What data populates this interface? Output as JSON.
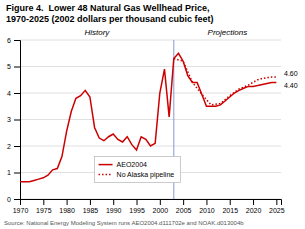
{
  "chart_data": {
    "type": "line",
    "title": "Figure 4.  Lower 48 Natural Gas Wellhead Price,",
    "subtitle": "1970-2025 (2002 dollars per thousand cubic feet)",
    "source": "Source: National Energy Modeling System runs AEO2004.d111702e and NOAK.d013004b",
    "xlim": [
      1970,
      2026
    ],
    "ylim": [
      0,
      6
    ],
    "xticks": [
      1970,
      1975,
      1980,
      1985,
      1990,
      1995,
      2000,
      2005,
      2010,
      2015,
      2020,
      2025
    ],
    "yticks": [
      0,
      1,
      2,
      3,
      4,
      5,
      6
    ],
    "grid": true,
    "divider_x": 2003,
    "annotations": [
      {
        "text": "History"
      },
      {
        "text": "Projections"
      },
      {
        "text": "4.60",
        "y": 4.6
      },
      {
        "text": "4.40",
        "y": 4.4
      }
    ],
    "series": [
      {
        "name": "AEO2004",
        "color": "#cc0000",
        "line_style": "solid",
        "x": [
          1970,
          1971,
          1972,
          1973,
          1974,
          1975,
          1976,
          1977,
          1978,
          1979,
          1980,
          1981,
          1982,
          1983,
          1984,
          1985,
          1986,
          1987,
          1988,
          1989,
          1990,
          1991,
          1992,
          1993,
          1994,
          1995,
          1996,
          1997,
          1998,
          1999,
          2000,
          2001,
          2002,
          2003,
          2004,
          2005,
          2006,
          2007,
          2008,
          2009,
          2010,
          2011,
          2012,
          2013,
          2014,
          2015,
          2016,
          2017,
          2018,
          2019,
          2020,
          2021,
          2022,
          2023,
          2024,
          2025
        ],
        "values": [
          0.65,
          0.65,
          0.65,
          0.7,
          0.75,
          0.8,
          0.9,
          1.1,
          1.15,
          1.6,
          2.55,
          3.3,
          3.8,
          3.9,
          4.1,
          3.85,
          2.7,
          2.3,
          2.2,
          2.35,
          2.45,
          2.25,
          2.15,
          2.35,
          2.05,
          1.85,
          2.35,
          2.25,
          2.0,
          2.1,
          4.0,
          4.9,
          3.1,
          5.3,
          5.5,
          5.2,
          4.65,
          4.4,
          4.4,
          3.95,
          3.5,
          3.5,
          3.5,
          3.55,
          3.7,
          3.85,
          4.0,
          4.1,
          4.18,
          4.25,
          4.25,
          4.28,
          4.32,
          4.36,
          4.4,
          4.4
        ]
      },
      {
        "name": "No Alaska pipeline",
        "color": "#cc0000",
        "line_style": "dotted",
        "x": [
          2003,
          2005,
          2007,
          2009,
          2011,
          2013,
          2015,
          2017,
          2019,
          2020,
          2021,
          2022,
          2023,
          2024,
          2025
        ],
        "values": [
          5.3,
          5.2,
          4.4,
          3.95,
          3.55,
          3.6,
          3.9,
          4.15,
          4.3,
          4.4,
          4.5,
          4.55,
          4.58,
          4.6,
          4.6
        ]
      }
    ]
  }
}
